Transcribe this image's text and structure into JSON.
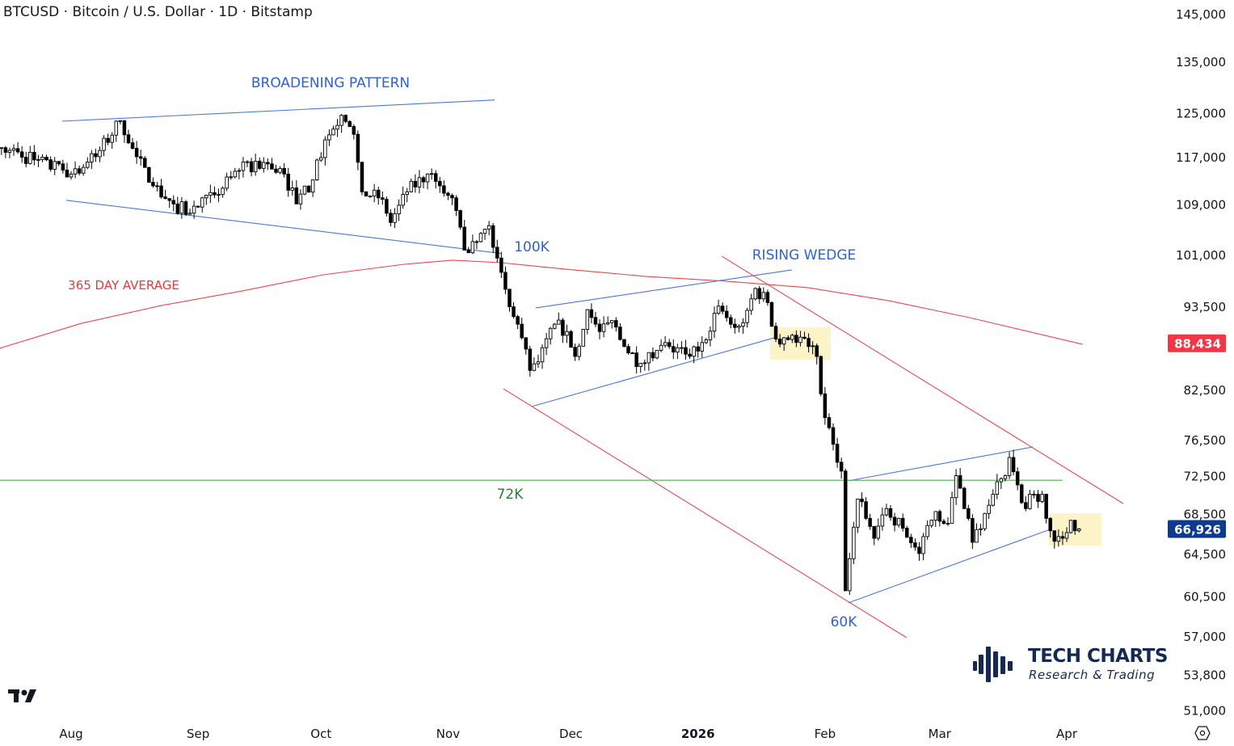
{
  "header": {
    "title": "BTCUSD · Bitcoin / U.S. Dollar · 1D · Bitstamp"
  },
  "branding": {
    "name": "TECH CHARTS",
    "tagline": "Research & Trading"
  },
  "chart_data": {
    "type": "candlestick",
    "scale": "log",
    "symbol": "BTCUSD",
    "interval": "1D",
    "x_unit": "days since 2025-08-01",
    "x_ticks": [
      {
        "day": 0,
        "label": "Aug"
      },
      {
        "day": 31,
        "label": "Sep"
      },
      {
        "day": 61,
        "label": "Oct"
      },
      {
        "day": 92,
        "label": "Nov"
      },
      {
        "day": 122,
        "label": "Dec"
      },
      {
        "day": 153,
        "label": "2026"
      },
      {
        "day": 184,
        "label": "Feb"
      },
      {
        "day": 212,
        "label": "Mar"
      },
      {
        "day": 243,
        "label": "Apr"
      }
    ],
    "y_ticks": [
      {
        "value": 145000,
        "label": "145,000"
      },
      {
        "value": 135000,
        "label": "135,000"
      },
      {
        "value": 125000,
        "label": "125,000"
      },
      {
        "value": 117000,
        "label": "117,000"
      },
      {
        "value": 109000,
        "label": "109,000"
      },
      {
        "value": 101000,
        "label": "101,000"
      },
      {
        "value": 93500,
        "label": "93,500"
      },
      {
        "value": 82500,
        "label": "82,500"
      },
      {
        "value": 76500,
        "label": "76,500"
      },
      {
        "value": 72500,
        "label": "72,500"
      },
      {
        "value": 68500,
        "label": "68,500"
      },
      {
        "value": 64500,
        "label": "64,500"
      },
      {
        "value": 60500,
        "label": "60,500"
      },
      {
        "value": 57000,
        "label": "57,000"
      },
      {
        "value": 53800,
        "label": "53,800"
      },
      {
        "value": 51000,
        "label": "51,000"
      }
    ],
    "ylim": [
      51000,
      145000
    ],
    "price_tags": [
      {
        "value": 88434,
        "label": "88,434",
        "color": "#f23645",
        "name": "365-day-average-price-tag"
      },
      {
        "value": 66926,
        "label": "66,926",
        "color": "#0d3a91",
        "name": "last-price-tag"
      }
    ],
    "close_anchors": [
      [
        -17,
        118600
      ],
      [
        0,
        114000
      ],
      [
        6,
        117000
      ],
      [
        12,
        123500
      ],
      [
        16,
        117000
      ],
      [
        20,
        112000
      ],
      [
        25,
        109000
      ],
      [
        29,
        107500
      ],
      [
        35,
        110500
      ],
      [
        41,
        114600
      ],
      [
        47,
        116000
      ],
      [
        52,
        114000
      ],
      [
        55,
        109000
      ],
      [
        59,
        113000
      ],
      [
        62,
        120000
      ],
      [
        66,
        124500
      ],
      [
        69,
        121000
      ],
      [
        71,
        111000
      ],
      [
        75,
        110000
      ],
      [
        78,
        106000
      ],
      [
        82,
        111000
      ],
      [
        87,
        114000
      ],
      [
        90,
        112000
      ],
      [
        93,
        110000
      ],
      [
        96,
        101700
      ],
      [
        99,
        103000
      ],
      [
        102,
        105500
      ],
      [
        104,
        100500
      ],
      [
        106,
        95900
      ],
      [
        109,
        91000
      ],
      [
        112,
        84900
      ],
      [
        114,
        86000
      ],
      [
        118,
        91000
      ],
      [
        121,
        90000
      ],
      [
        123,
        86700
      ],
      [
        126,
        93000
      ],
      [
        129,
        90000
      ],
      [
        132,
        91500
      ],
      [
        135,
        88000
      ],
      [
        139,
        85800
      ],
      [
        143,
        87500
      ],
      [
        146,
        88000
      ],
      [
        150,
        87000
      ],
      [
        153,
        87400
      ],
      [
        158,
        93500
      ],
      [
        161,
        91000
      ],
      [
        164,
        91200
      ],
      [
        167,
        96000
      ],
      [
        170,
        94000
      ],
      [
        172,
        89000
      ],
      [
        176,
        89500
      ],
      [
        180,
        88000
      ],
      [
        182,
        86700
      ],
      [
        184,
        79100
      ],
      [
        186,
        76000
      ],
      [
        188,
        73000
      ],
      [
        189,
        61000
      ],
      [
        190,
        64000
      ],
      [
        192,
        70000
      ],
      [
        194,
        68000
      ],
      [
        196,
        66000
      ],
      [
        199,
        69000
      ],
      [
        203,
        67000
      ],
      [
        207,
        64500
      ],
      [
        211,
        68700
      ],
      [
        214,
        67500
      ],
      [
        216,
        72500
      ],
      [
        218,
        69000
      ],
      [
        220,
        65600
      ],
      [
        223,
        68500
      ],
      [
        225,
        70500
      ],
      [
        228,
        72500
      ],
      [
        229,
        74500
      ],
      [
        231,
        71500
      ],
      [
        233,
        69000
      ],
      [
        235,
        70500
      ],
      [
        237,
        70500
      ],
      [
        238,
        68000
      ],
      [
        240,
        65700
      ],
      [
        242,
        66000
      ],
      [
        244,
        67800
      ],
      [
        246,
        66926
      ]
    ],
    "series": [
      {
        "name": "365 DAY AVERAGE",
        "color": "#e8474c",
        "points": [
          [
            -17.4,
            87770
          ],
          [
            2.4,
            91100
          ],
          [
            22.1,
            93590
          ],
          [
            41.8,
            95660
          ],
          [
            61.5,
            98000
          ],
          [
            81.3,
            99560
          ],
          [
            93.1,
            100170
          ],
          [
            104.9,
            99800
          ],
          [
            120.7,
            98830
          ],
          [
            140.4,
            97760
          ],
          [
            160.2,
            97050
          ],
          [
            179.9,
            96120
          ],
          [
            199.6,
            94260
          ],
          [
            219.3,
            91900
          ],
          [
            246.9,
            88290
          ]
        ]
      }
    ],
    "trendlines": [
      {
        "name": "broadening-top-line",
        "color": "#4a78d9",
        "points": [
          [
            -2.2,
            123400
          ],
          [
            103.4,
            127400
          ]
        ]
      },
      {
        "name": "broadening-bottom-line",
        "color": "#4a78d9",
        "points": [
          [
            -1.2,
            109600
          ],
          [
            104.9,
            101200
          ]
        ]
      },
      {
        "name": "rising-wedge-top-line",
        "color": "#4a78d9",
        "points": [
          [
            113.4,
            93250
          ],
          [
            175.9,
            98720
          ]
        ]
      },
      {
        "name": "rising-wedge-bottom-line",
        "color": "#4a78d9",
        "points": [
          [
            112.4,
            80420
          ],
          [
            171.6,
            89160
          ]
        ]
      },
      {
        "name": "channel-top-line",
        "color": "#e8474c",
        "points": [
          [
            158.8,
            100780
          ],
          [
            256.8,
            69530
          ]
        ]
      },
      {
        "name": "channel-bottom-line",
        "color": "#e8474c",
        "points": [
          [
            105.5,
            82590
          ],
          [
            203.9,
            56860
          ]
        ]
      },
      {
        "name": "triangle-top-line",
        "color": "#4a78d9",
        "points": [
          [
            189.7,
            71940
          ],
          [
            234.7,
            75690
          ]
        ]
      },
      {
        "name": "triangle-bottom-line",
        "color": "#4a78d9",
        "points": [
          [
            189.7,
            59900
          ],
          [
            239,
            66890
          ]
        ]
      },
      {
        "name": "level-72k-line",
        "color": "#4caf50",
        "points": [
          [
            -17.4,
            72000
          ],
          [
            242,
            72000
          ]
        ]
      }
    ],
    "highlight_boxes": [
      {
        "name": "breakdown-box-january",
        "day_range": [
          170.6,
          185.4
        ],
        "price_range": [
          86270,
          90570
        ],
        "color": "#fdf3c8"
      },
      {
        "name": "retest-box-april",
        "day_range": [
          238.7,
          251.5
        ],
        "price_range": [
          65280,
          68530
        ],
        "color": "#fdf3c8"
      }
    ],
    "annotations": [
      {
        "name": "broadening-pattern-label",
        "text": "BROADENING PATTERN",
        "color": "#2f62d0"
      },
      {
        "name": "100k-label",
        "text": "100K",
        "color": "#2f62d0"
      },
      {
        "name": "rising-wedge-label",
        "text": "RISING WEDGE",
        "color": "#2f62d0"
      },
      {
        "name": "365-day-average-label",
        "text": "365 DAY AVERAGE",
        "color": "#e03c3c"
      },
      {
        "name": "72k-label",
        "text": "72K",
        "color": "#2e7d32"
      },
      {
        "name": "60k-label",
        "text": "60K",
        "color": "#2f62d0"
      }
    ]
  }
}
